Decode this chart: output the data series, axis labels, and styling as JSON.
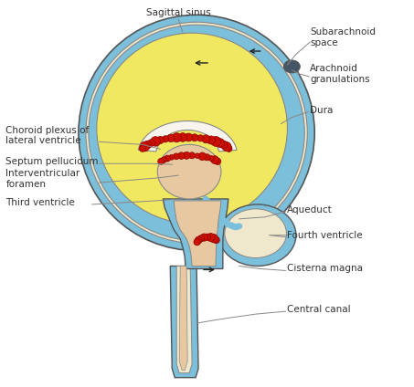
{
  "bg_color": "#ffffff",
  "blue_color": "#7bbfda",
  "cream_color": "#f0e8cc",
  "yellow_color": "#f0e860",
  "peach_color": "#e8c8a0",
  "white_region": "#f8f5ee",
  "red_color": "#cc1100",
  "dark_red": "#880000",
  "outline_color": "#555555",
  "inner_outline": "#888888",
  "label_color": "#333333",
  "line_color": "#888888",
  "arrow_color": "#222222",
  "labels": {
    "sagittal_sinus": "Sagittal sinus",
    "subarachnoid": "Subarachnoid\nspace",
    "arachnoid": "Arachnoid\ngranulations",
    "dura": "Dura",
    "choroid": "Choroid plexus of\nlateral ventricle",
    "septum": "Septum pellucidum",
    "interventricular": "Interventricular\nforamen",
    "third_ventricle": "Third ventricle",
    "aqueduct": "Aqueduct",
    "fourth_ventricle": "Fourth ventricle",
    "cisterna_magna": "Cisterna magna",
    "central_canal": "Central canal"
  },
  "font_size": 7.5
}
